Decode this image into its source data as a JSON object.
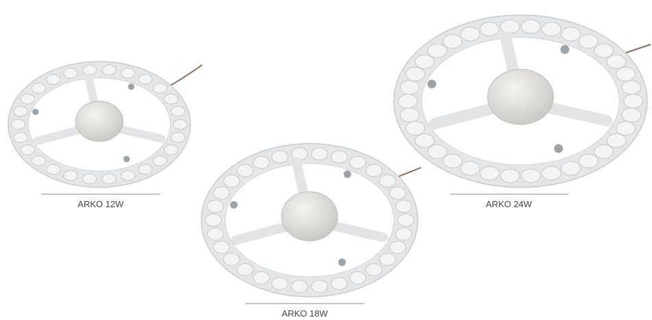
{
  "products": [
    {
      "label": "ARKO 12W"
    },
    {
      "label": "ARKO 18W"
    },
    {
      "label": "ARKO 24W"
    }
  ]
}
